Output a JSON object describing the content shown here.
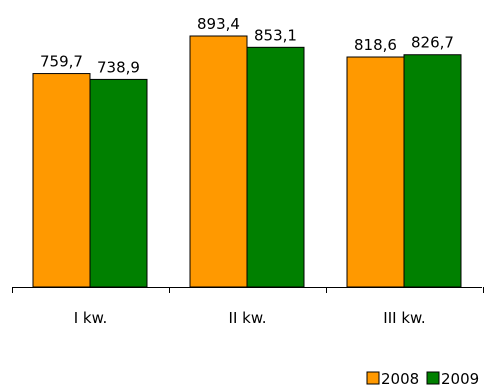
{
  "chart_data": {
    "type": "bar",
    "title": "",
    "xlabel": "",
    "ylabel": "",
    "categories": [
      "I kw.",
      "II kw.",
      "III kw."
    ],
    "series": [
      {
        "name": "2008",
        "values": [
          759.7,
          893.4,
          818.6
        ],
        "labels": [
          "759,7",
          "893,4",
          "818,6"
        ],
        "color": "#FF9900"
      },
      {
        "name": "2009",
        "values": [
          738.9,
          853.1,
          826.7
        ],
        "labels": [
          "738,9",
          "853,1",
          "826,7"
        ],
        "color": "#008000"
      }
    ],
    "ylim": [
      0,
      893.4
    ],
    "grid": false,
    "legend_position": "bottom-right"
  }
}
